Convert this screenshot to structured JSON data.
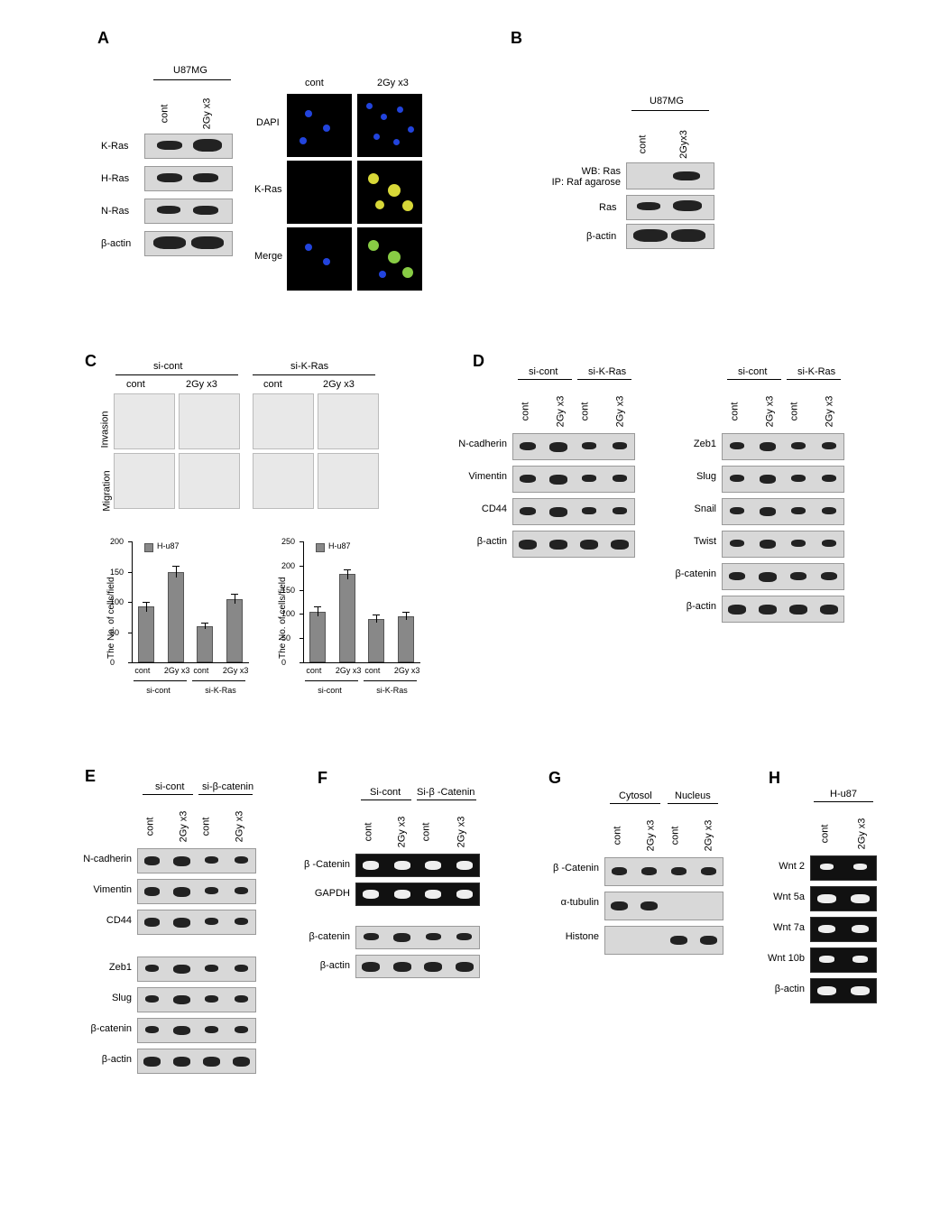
{
  "labels": {
    "A": "A",
    "B": "B",
    "C": "C",
    "D": "D",
    "E": "E",
    "F": "F",
    "G": "G",
    "H": "H"
  },
  "panelA": {
    "title": "U87MG",
    "cond": [
      "cont",
      "2Gy x3"
    ],
    "rows": [
      "K-Ras",
      "H-Ras",
      "N-Ras",
      "β-actin"
    ],
    "if_cond": [
      "cont",
      "2Gy x3"
    ],
    "if_rows": [
      "DAPI",
      "K-Ras",
      "Merge"
    ],
    "dapi_color": "#2244dd",
    "kras_color": "#d8d838",
    "merge_color": "#88cc44",
    "blot_bg": "#d8d8d8",
    "band_color": "#333333"
  },
  "panelB": {
    "title": "U87MG",
    "cond": [
      "cont",
      "2Gyx3"
    ],
    "rows_left": [
      "WB: Ras",
      "IP: Raf agarose"
    ],
    "rows": [
      "Ras",
      "β-actin"
    ]
  },
  "panelC": {
    "groups": [
      "si-cont",
      "si-K-Ras"
    ],
    "cond": [
      "cont",
      "2Gy x3",
      "cont",
      "2Gy x3"
    ],
    "rows": [
      "Invasion",
      "Migration"
    ],
    "charts": {
      "invasion": {
        "type": "bar",
        "legend": "H-u87",
        "ylabel": "The No. of cells/field",
        "ylim": [
          0,
          200
        ],
        "yticks": [
          0,
          50,
          100,
          150,
          200
        ],
        "values": [
          92,
          150,
          60,
          105
        ],
        "errors": [
          8,
          10,
          5,
          8
        ],
        "categories": [
          "cont",
          "2Gy x3",
          "cont",
          "2Gy x3"
        ],
        "bottom_groups": [
          "si-cont",
          "si-K-Ras"
        ],
        "bar_color": "#888888",
        "bg": "#ffffff"
      },
      "migration": {
        "type": "bar",
        "legend": "H-u87",
        "ylabel": "The No. of cells/field",
        "ylim": [
          0,
          250
        ],
        "yticks": [
          0,
          50,
          100,
          150,
          200,
          250
        ],
        "values": [
          105,
          182,
          90,
          96
        ],
        "errors": [
          10,
          10,
          8,
          8
        ],
        "categories": [
          "cont",
          "2Gy x3",
          "cont",
          "2Gy x3"
        ],
        "bottom_groups": [
          "si-cont",
          "si-K-Ras"
        ],
        "bar_color": "#888888",
        "bg": "#ffffff"
      }
    }
  },
  "panelD": {
    "groups": [
      "si-cont",
      "si-K-Ras"
    ],
    "cond": [
      "cont",
      "2Gy x3",
      "cont",
      "2Gy x3"
    ],
    "left_rows": [
      "N-cadherin",
      "Vimentin",
      "CD44",
      "β-actin"
    ],
    "right_rows": [
      "Zeb1",
      "Slug",
      "Snail",
      "Twist",
      "β-catenin",
      "β-actin"
    ]
  },
  "panelE": {
    "groups": [
      "si-cont",
      "si-β-catenin"
    ],
    "cond": [
      "cont",
      "2Gy x3",
      "cont",
      "2Gy x3"
    ],
    "top_rows": [
      "N-cadherin",
      "Vimentin",
      "CD44"
    ],
    "bot_rows": [
      "Zeb1",
      "Slug",
      "β-catenin",
      "β-actin"
    ]
  },
  "panelF": {
    "groups": [
      "Si-cont",
      "Si-β -Catenin"
    ],
    "cond": [
      "cont",
      "2Gy x3",
      "cont",
      "2Gy x3"
    ],
    "rows": [
      "β -Catenin",
      "GAPDH",
      "β-catenin",
      "β-actin"
    ]
  },
  "panelG": {
    "groups": [
      "Cytosol",
      "Nucleus"
    ],
    "cond": [
      "cont",
      "2Gy x3",
      "cont",
      "2Gy x3"
    ],
    "rows": [
      "β -Catenin",
      "α-tubulin",
      "Histone"
    ]
  },
  "panelH": {
    "title": "H-u87",
    "cond": [
      "cont",
      "2Gy x3"
    ],
    "rows": [
      "Wnt 2",
      "Wnt 5a",
      "Wnt 7a",
      "Wnt 10b",
      "β-actin"
    ]
  }
}
